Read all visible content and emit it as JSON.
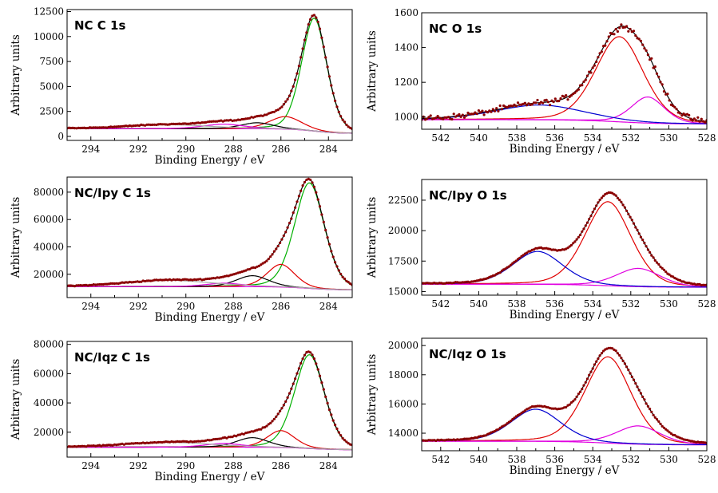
{
  "figure": {
    "y_axis_label": "Arbitrary units",
    "x_axis_label": "Binding Energy / eV",
    "colors": {
      "data_points": "#8b0000",
      "envelope": "#000000",
      "green": "#00b000",
      "red": "#e00000",
      "blue": "#0000d0",
      "magenta": "#e000e0",
      "gray": "#a8a8a8"
    }
  },
  "chart_data": [
    {
      "type": "line",
      "title": "NC  C 1s",
      "xlabel": "Binding Energy / eV",
      "ylabel": "Arbitrary units",
      "xlim": [
        295,
        283
      ],
      "ylim": [
        -400,
        12700
      ],
      "x_ticks": [
        294,
        292,
        290,
        288,
        286,
        284
      ],
      "y_ticks": [
        0,
        2500,
        5000,
        7500,
        10000,
        12500
      ],
      "baseline": {
        "y_low": 300,
        "y_high": 770
      },
      "components": [
        {
          "center": 284.6,
          "height": 11300,
          "width": 0.55,
          "color": "green"
        },
        {
          "center": 285.8,
          "height": 1250,
          "width": 0.7,
          "color": "red"
        },
        {
          "center": 287.0,
          "height": 600,
          "width": 0.7,
          "color": "black"
        },
        {
          "center": 288.4,
          "height": 450,
          "width": 0.9,
          "color": "magenta"
        },
        {
          "center": 290.7,
          "height": 400,
          "width": 1.8,
          "color": "gray"
        }
      ]
    },
    {
      "type": "line",
      "title": "NC  O 1s",
      "xlabel": "Binding Energy / eV",
      "ylabel": "Arbitrary units",
      "xlim": [
        543,
        528
      ],
      "ylim": [
        930,
        1600
      ],
      "x_ticks": [
        542,
        540,
        538,
        536,
        534,
        532,
        530,
        528
      ],
      "y_ticks": [
        1000,
        1200,
        1400,
        1600
      ],
      "baseline": {
        "y_low": 960,
        "y_high": 985
      },
      "components": [
        {
          "center": 532.6,
          "height": 490,
          "width": 1.3,
          "color": "red"
        },
        {
          "center": 531.1,
          "height": 150,
          "width": 0.9,
          "color": "magenta"
        },
        {
          "center": 536.8,
          "height": 85,
          "width": 2.4,
          "color": "blue"
        }
      ]
    },
    {
      "type": "line",
      "title": "NC/Ipy  C 1s",
      "xlabel": "Binding Energy / eV",
      "ylabel": "Arbitrary units",
      "xlim": [
        295,
        283
      ],
      "ylim": [
        3000,
        91000
      ],
      "x_ticks": [
        294,
        292,
        290,
        288,
        286,
        284
      ],
      "y_ticks": [
        20000,
        40000,
        60000,
        80000
      ],
      "baseline": {
        "y_low": 8500,
        "y_high": 11000
      },
      "components": [
        {
          "center": 284.8,
          "height": 77000,
          "width": 0.65,
          "color": "green"
        },
        {
          "center": 286.0,
          "height": 16500,
          "width": 0.6,
          "color": "red"
        },
        {
          "center": 287.2,
          "height": 8000,
          "width": 0.7,
          "color": "black"
        },
        {
          "center": 288.4,
          "height": 2500,
          "width": 0.8,
          "color": "magenta"
        },
        {
          "center": 290.7,
          "height": 4500,
          "width": 1.9,
          "color": "gray"
        }
      ]
    },
    {
      "type": "line",
      "title": "NC/Ipy  O 1s",
      "xlabel": "Binding Energy / eV",
      "ylabel": "Arbitrary units",
      "xlim": [
        543,
        528
      ],
      "ylim": [
        14700,
        24200
      ],
      "x_ticks": [
        542,
        540,
        538,
        536,
        534,
        532,
        530,
        528
      ],
      "y_ticks": [
        15000,
        17500,
        20000,
        22500
      ],
      "baseline": {
        "y_low": 15350,
        "y_high": 15600
      },
      "components": [
        {
          "center": 533.2,
          "height": 6900,
          "width": 1.25,
          "color": "red"
        },
        {
          "center": 531.6,
          "height": 1500,
          "width": 1.2,
          "color": "magenta"
        },
        {
          "center": 536.9,
          "height": 2700,
          "width": 1.35,
          "color": "blue"
        }
      ]
    },
    {
      "type": "line",
      "title": "NC/Iqz  C 1s",
      "xlabel": "Binding Energy / eV",
      "ylabel": "Arbitrary units",
      "xlim": [
        295,
        283
      ],
      "ylim": [
        3000,
        82000
      ],
      "x_ticks": [
        294,
        292,
        290,
        288,
        286,
        284
      ],
      "y_ticks": [
        20000,
        40000,
        60000,
        80000
      ],
      "baseline": {
        "y_low": 8000,
        "y_high": 9800
      },
      "components": [
        {
          "center": 284.8,
          "height": 64000,
          "width": 0.65,
          "color": "green"
        },
        {
          "center": 286.0,
          "height": 11500,
          "width": 0.6,
          "color": "red"
        },
        {
          "center": 287.2,
          "height": 6500,
          "width": 0.7,
          "color": "black"
        },
        {
          "center": 288.4,
          "height": 2500,
          "width": 0.8,
          "color": "magenta"
        },
        {
          "center": 290.7,
          "height": 3200,
          "width": 1.9,
          "color": "gray"
        }
      ]
    },
    {
      "type": "line",
      "title": "NC/Iqz  O 1s",
      "xlabel": "Binding Energy / eV",
      "ylabel": "Arbitrary units",
      "xlim": [
        543,
        528
      ],
      "ylim": [
        12800,
        20500
      ],
      "x_ticks": [
        542,
        540,
        538,
        536,
        534,
        532,
        530,
        528
      ],
      "y_ticks": [
        14000,
        16000,
        18000,
        20000
      ],
      "baseline": {
        "y_low": 13200,
        "y_high": 13450
      },
      "components": [
        {
          "center": 533.2,
          "height": 5900,
          "width": 1.25,
          "color": "red"
        },
        {
          "center": 531.6,
          "height": 1250,
          "width": 1.2,
          "color": "magenta"
        },
        {
          "center": 537.0,
          "height": 2200,
          "width": 1.35,
          "color": "blue"
        }
      ]
    }
  ]
}
